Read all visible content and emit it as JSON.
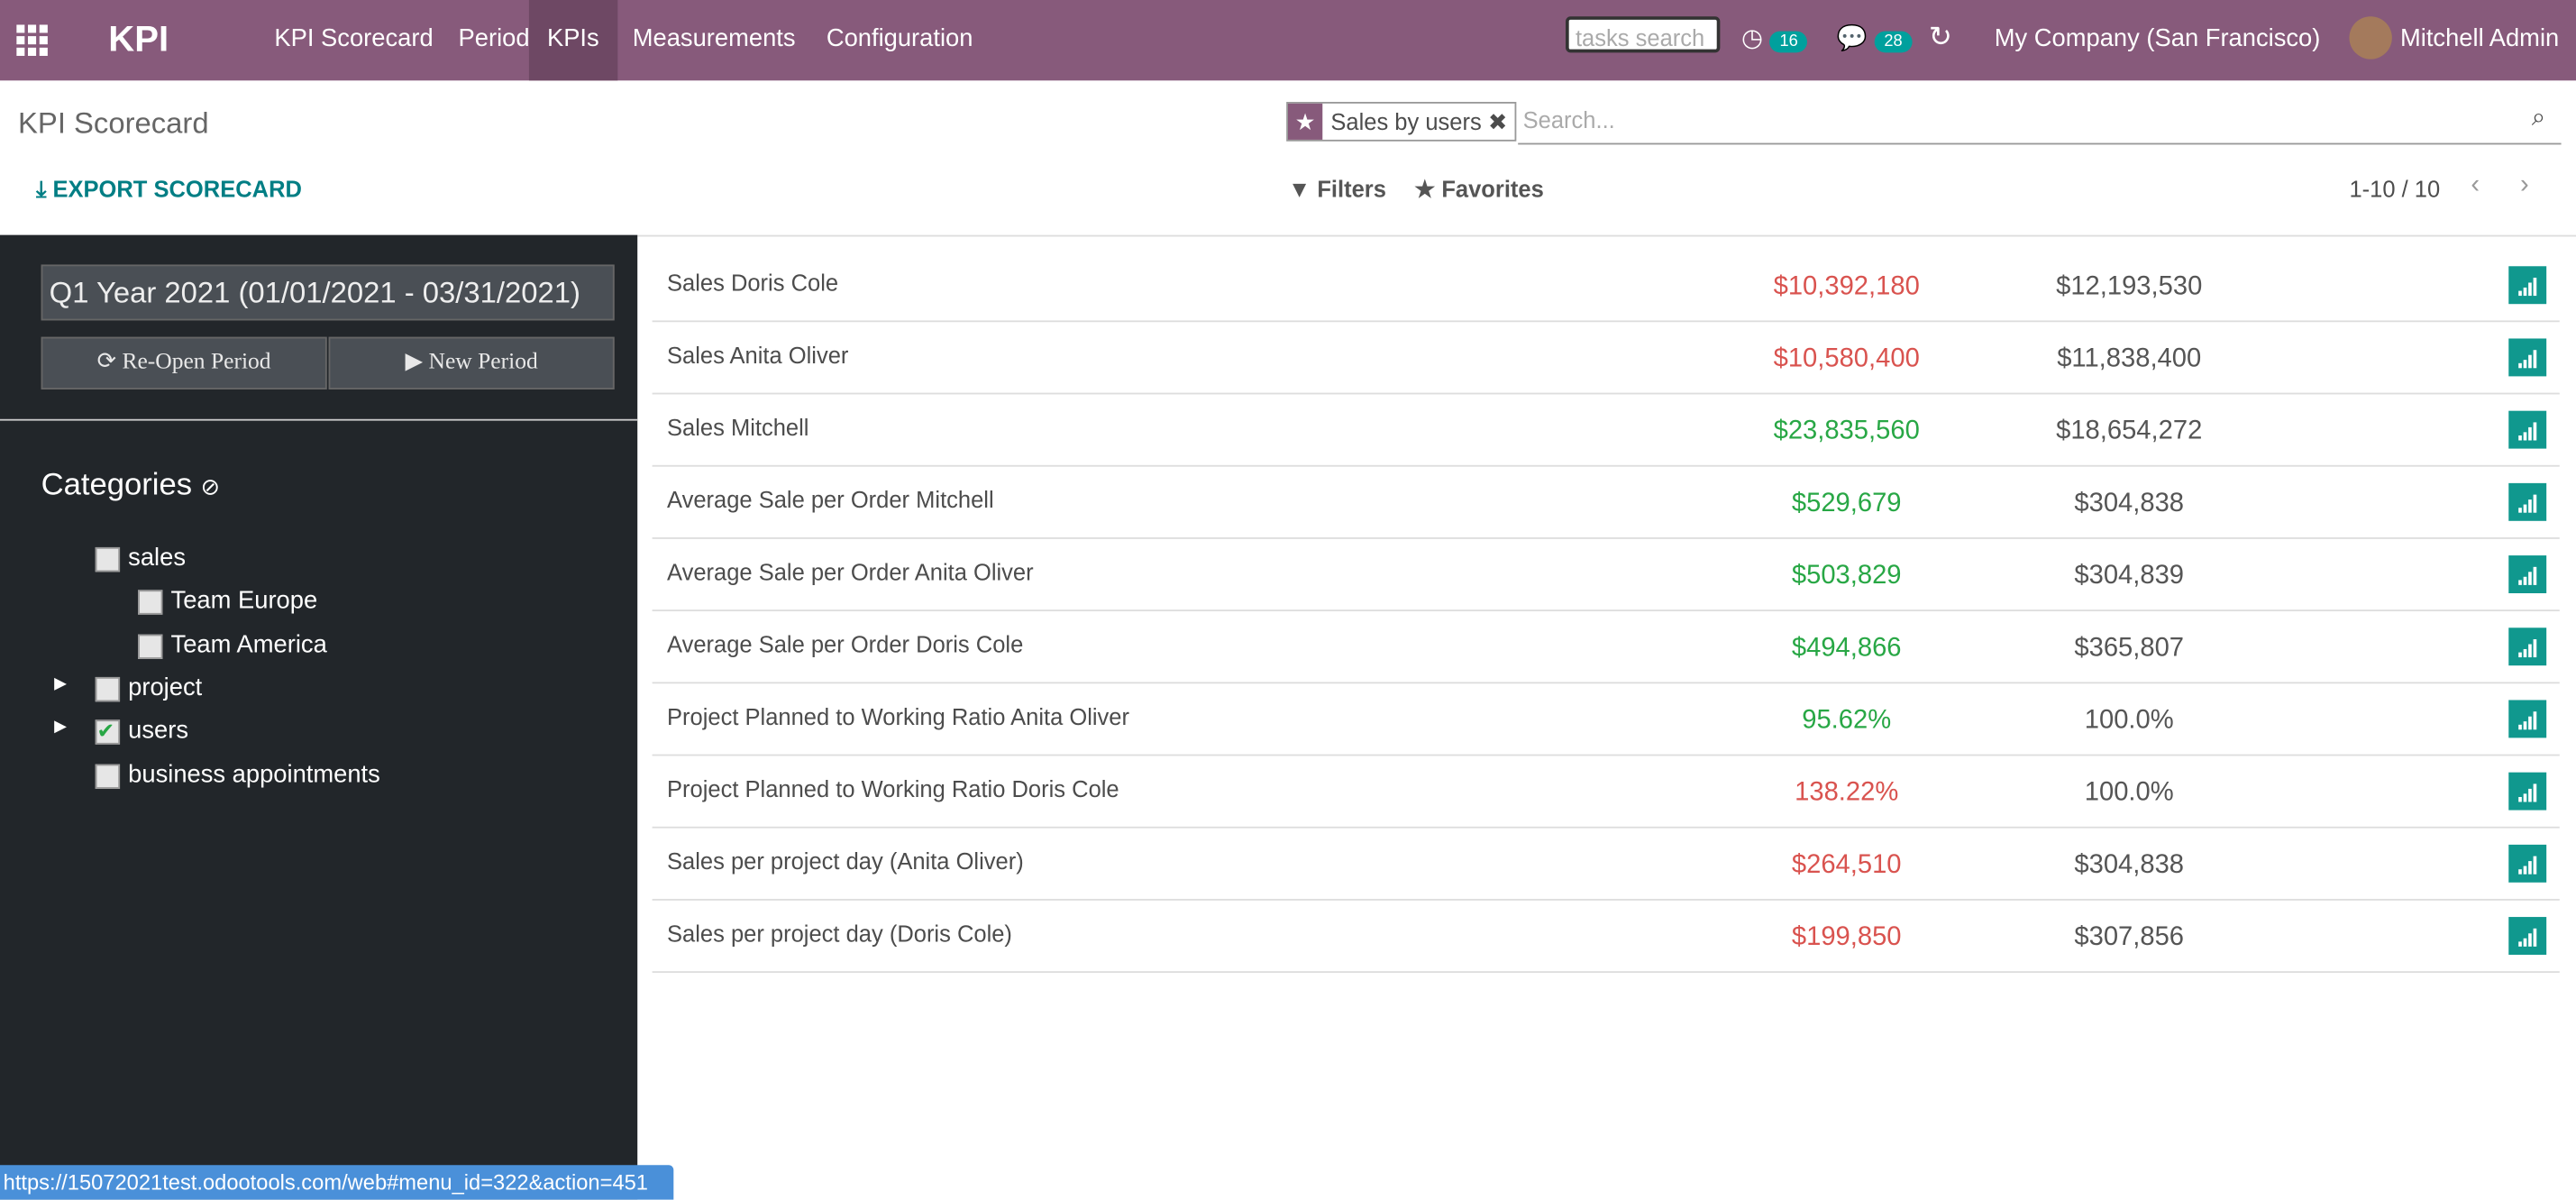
{
  "navbar": {
    "app": "KPI",
    "menu": [
      "KPI Scorecard",
      "Periods",
      "KPIs",
      "Measurements",
      "Configuration"
    ],
    "active_menu": 2,
    "search_placeholder": "tasks search",
    "activities": "16",
    "messages": "28",
    "company": "My Company (San Francisco)",
    "user": "Mitchell Admin"
  },
  "control_panel": {
    "title": "KPI Scorecard",
    "facet": "Sales by users",
    "search_placeholder": "Search...",
    "export": "EXPORT SCORECARD",
    "filters": "Filters",
    "favorites": "Favorites",
    "pager": "1-10 / 10"
  },
  "sidebar": {
    "period": "Q1 Year 2021 (01/01/2021 - 03/31/2021)",
    "reopen": "Re-Open Period",
    "new_period": "New Period",
    "categories_title": "Categories",
    "categories": [
      {
        "label": "sales",
        "checked": false,
        "expandable": false,
        "children": [
          {
            "label": "Team Europe",
            "checked": false
          },
          {
            "label": "Team America",
            "checked": false
          }
        ]
      },
      {
        "label": "project",
        "checked": false,
        "expandable": true
      },
      {
        "label": "users",
        "checked": true,
        "expandable": true
      },
      {
        "label": "business appointments",
        "checked": false,
        "expandable": false
      }
    ]
  },
  "table": {
    "rows": [
      {
        "name": "Sales Doris Cole",
        "actual": "$10,392,180",
        "target": "$12,193,530",
        "color": "#d9534f"
      },
      {
        "name": "Sales Anita Oliver",
        "actual": "$10,580,400",
        "target": "$11,838,400",
        "color": "#d9534f"
      },
      {
        "name": "Sales Mitchell",
        "actual": "$23,835,560",
        "target": "$18,654,272",
        "color": "#28a745"
      },
      {
        "name": "Average Sale per Order Mitchell",
        "actual": "$529,679",
        "target": "$304,838",
        "color": "#28a745"
      },
      {
        "name": "Average Sale per Order Anita Oliver",
        "actual": "$503,829",
        "target": "$304,839",
        "color": "#28a745"
      },
      {
        "name": "Average Sale per Order Doris Cole",
        "actual": "$494,866",
        "target": "$365,807",
        "color": "#28a745"
      },
      {
        "name": "Project Planned to Working Ratio Anita Oliver",
        "actual": "95.62%",
        "target": "100.0%",
        "color": "#28a745"
      },
      {
        "name": "Project Planned to Working Ratio Doris Cole",
        "actual": "138.22%",
        "target": "100.0%",
        "color": "#d9534f"
      },
      {
        "name": "Sales per project day (Anita Oliver)",
        "actual": "$264,510",
        "target": "$304,838",
        "color": "#d9534f"
      },
      {
        "name": "Sales per project day (Doris Cole)",
        "actual": "$199,850",
        "target": "$307,856",
        "color": "#d9534f"
      }
    ]
  },
  "status_bar": "https://15072021test.odootools.com/web#menu_id=322&action=451"
}
